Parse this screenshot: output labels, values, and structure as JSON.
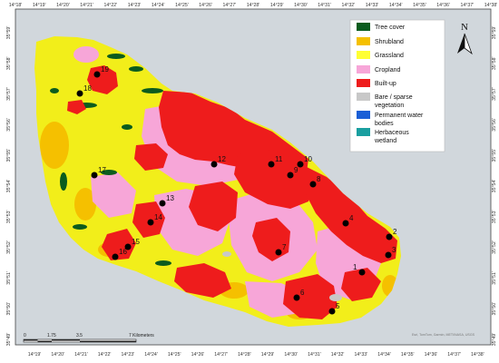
{
  "map": {
    "top_ticks": [
      "14°18'",
      "14°19'",
      "14°20'",
      "14°21'",
      "14°22'",
      "14°23'",
      "14°24'",
      "14°25'",
      "14°26'",
      "14°27'",
      "14°28'",
      "14°29'",
      "14°30'",
      "14°31'",
      "14°32'",
      "14°33'",
      "14°34'",
      "14°35'",
      "14°36'",
      "14°37'",
      "14°38'"
    ],
    "bottom_ticks": [
      "14°19'",
      "14°20'",
      "14°21'",
      "14°22'",
      "14°23'",
      "14°24'",
      "14°25'",
      "14°26'",
      "14°27'",
      "14°28'",
      "14°29'",
      "14°30'",
      "14°31'",
      "14°32'",
      "14°33'",
      "14°34'",
      "14°35'",
      "14°36'",
      "14°37'",
      "14°38'"
    ],
    "left_ticks": [
      "35°59'",
      "35°58'",
      "35°57'",
      "35°56'",
      "35°55'",
      "35°54'",
      "35°53'",
      "35°52'",
      "35°51'",
      "35°50'",
      "35°49'"
    ],
    "right_ticks": [
      "35°59'",
      "35°58'",
      "35°57'",
      "35°56'",
      "35°55'",
      "35°54'",
      "35°53'",
      "35°52'",
      "35°51'",
      "35°50'",
      "35°49'"
    ],
    "north_label": "N",
    "scale": {
      "labels": [
        "0",
        "1.75",
        "3.5",
        "7 Kilometers"
      ]
    },
    "credit": "Esri, TomTom, Garmin, METI/NASA, USGS",
    "legend": [
      {
        "label": "Tree cover",
        "color": "#0b5c1e"
      },
      {
        "label": "Shrubland",
        "color": "#f5c000"
      },
      {
        "label": "Grassland",
        "color": "#ffff33"
      },
      {
        "label": "Cropland",
        "color": "#f7a6d8"
      },
      {
        "label": "Built-up",
        "color": "#ee1c1c"
      },
      {
        "label": "Bare / sparse vegetation",
        "color": "#c8c8c8"
      },
      {
        "label": "Permanent water bodies",
        "color": "#1a5fd6"
      },
      {
        "label": "Herbaceous wetland",
        "color": "#1a9fa0"
      }
    ],
    "sites": [
      "1",
      "2",
      "3",
      "4",
      "5",
      "6",
      "7",
      "8",
      "9",
      "10",
      "11",
      "12",
      "13",
      "14",
      "15",
      "16",
      "17",
      "18",
      "19"
    ],
    "colors": {
      "sea": "#d1d7dc",
      "land_base": "#f2ee1a"
    }
  }
}
